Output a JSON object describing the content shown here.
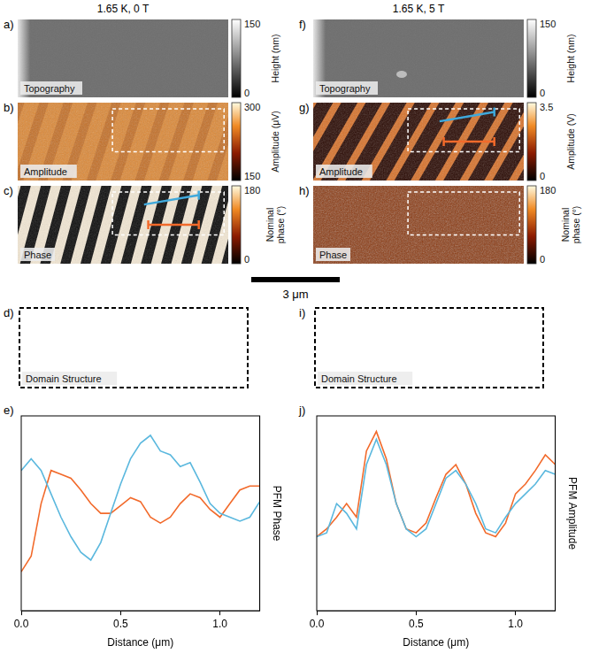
{
  "figure": {
    "scale_bar": "3 μm",
    "columns": [
      {
        "title": "1.65 K, 0 T",
        "panels": [
          {
            "letter": "a)",
            "label": "Topography",
            "colorbar": {
              "title": "Height (nm)",
              "range": [
                0,
                150
              ],
              "ticks": [
                0,
                150
              ]
            }
          },
          {
            "letter": "b)",
            "label": "Amplitude",
            "colorbar": {
              "title": "Amplitude (μV)",
              "range": [
                150,
                300
              ],
              "ticks": [
                150,
                300
              ]
            }
          },
          {
            "letter": "c)",
            "label": "Phase",
            "colorbar": {
              "title": "Nominal phase (°)",
              "range": [
                0,
                180
              ],
              "ticks": [
                0,
                180
              ]
            }
          }
        ],
        "domain": {
          "letter": "d)",
          "label": "Domain Structure"
        }
      },
      {
        "title": "1.65 K, 5 T",
        "panels": [
          {
            "letter": "f)",
            "label": "Topography",
            "colorbar": {
              "title": "Height (nm)",
              "range": [
                0,
                150
              ],
              "ticks": [
                0,
                150
              ]
            }
          },
          {
            "letter": "g)",
            "label": "Amplitude",
            "colorbar": {
              "title": "Amplitude (V)",
              "range": [
                0,
                3.5
              ],
              "ticks": [
                0,
                3.5
              ]
            }
          },
          {
            "letter": "h)",
            "label": "Phase",
            "colorbar": {
              "title": "Nominal phase (°)",
              "range": [
                0,
                180
              ],
              "ticks": [
                0,
                180
              ]
            }
          }
        ],
        "domain": {
          "letter": "i)",
          "label": "Domain Structure"
        }
      }
    ]
  },
  "chart_data": [
    {
      "type": "line",
      "letter": "e)",
      "x_label": "Distance (μm)",
      "y_label": "PFM Phase",
      "x": [
        0,
        0.05,
        0.1,
        0.15,
        0.2,
        0.25,
        0.3,
        0.35,
        0.4,
        0.45,
        0.5,
        0.55,
        0.6,
        0.65,
        0.7,
        0.75,
        0.8,
        0.85,
        0.9,
        0.95,
        1.0,
        1.05,
        1.1,
        1.15,
        1.2
      ],
      "series": [
        {
          "color": "#5bb8de",
          "values": [
            0.72,
            0.78,
            0.72,
            0.6,
            0.48,
            0.38,
            0.3,
            0.26,
            0.35,
            0.5,
            0.65,
            0.78,
            0.86,
            0.9,
            0.82,
            0.8,
            0.74,
            0.76,
            0.66,
            0.55,
            0.5,
            0.48,
            0.46,
            0.48,
            0.56
          ]
        },
        {
          "color": "#f26a2b",
          "values": [
            0.2,
            0.28,
            0.55,
            0.72,
            0.7,
            0.68,
            0.62,
            0.55,
            0.5,
            0.5,
            0.54,
            0.58,
            0.56,
            0.48,
            0.45,
            0.48,
            0.55,
            0.6,
            0.58,
            0.52,
            0.48,
            0.55,
            0.62,
            0.64,
            0.64
          ]
        }
      ],
      "xlim": [
        0,
        1.2
      ],
      "xticks": [
        {
          "value": 0,
          "label": "0.0"
        },
        {
          "value": 0.5,
          "label": "0.5"
        },
        {
          "value": 1,
          "label": "1.0"
        }
      ],
      "ylim": [
        0,
        1
      ],
      "tick_labels": "x",
      "grid": false
    },
    {
      "type": "line",
      "letter": "j)",
      "x_label": "Distance (μm)",
      "y_label": "PFM Amplitude",
      "x": [
        0,
        0.05,
        0.1,
        0.15,
        0.2,
        0.25,
        0.3,
        0.35,
        0.4,
        0.45,
        0.5,
        0.55,
        0.6,
        0.65,
        0.7,
        0.75,
        0.8,
        0.85,
        0.9,
        0.95,
        1.0,
        1.05,
        1.1,
        1.15,
        1.2
      ],
      "series": [
        {
          "color": "#5bb8de",
          "values": [
            0.38,
            0.4,
            0.55,
            0.5,
            0.42,
            0.75,
            0.88,
            0.75,
            0.55,
            0.42,
            0.38,
            0.42,
            0.55,
            0.68,
            0.72,
            0.65,
            0.55,
            0.42,
            0.4,
            0.48,
            0.55,
            0.6,
            0.65,
            0.72,
            0.7
          ]
        },
        {
          "color": "#f26a2b",
          "values": [
            0.38,
            0.42,
            0.48,
            0.55,
            0.48,
            0.82,
            0.92,
            0.78,
            0.55,
            0.42,
            0.4,
            0.45,
            0.58,
            0.7,
            0.75,
            0.65,
            0.5,
            0.4,
            0.38,
            0.45,
            0.6,
            0.65,
            0.72,
            0.8,
            0.75
          ]
        }
      ],
      "xlim": [
        0,
        1.2
      ],
      "xticks": [
        {
          "value": 0,
          "label": "0.0"
        },
        {
          "value": 0.5,
          "label": "0.5"
        },
        {
          "value": 1,
          "label": "1.0"
        }
      ],
      "ylim": [
        0,
        1
      ],
      "tick_labels": "x",
      "grid": false
    }
  ]
}
